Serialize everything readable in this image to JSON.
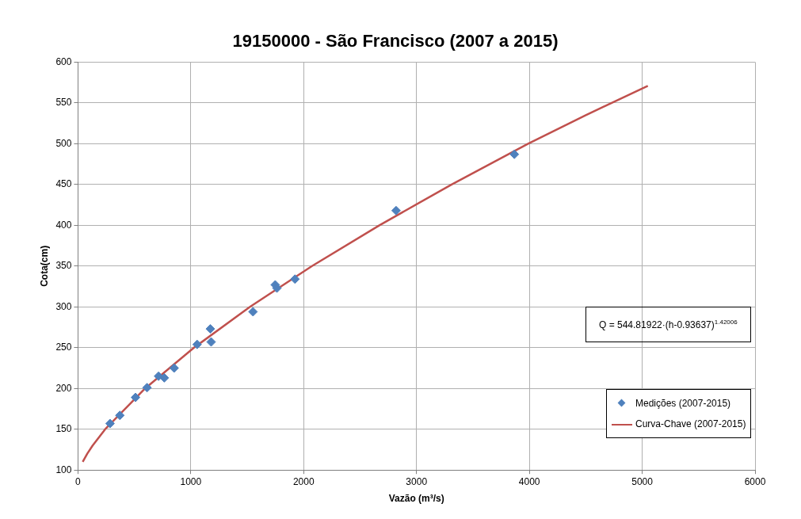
{
  "chart_data": {
    "type": "scatter",
    "title": "19150000 - São Francisco (2007 a 2015)",
    "xlabel": "Vazão (m³/s)",
    "ylabel": "Cota(cm)",
    "xlim": [
      0,
      6000
    ],
    "xticks": [
      0,
      1000,
      2000,
      3000,
      4000,
      5000,
      6000
    ],
    "ylim": [
      100,
      600
    ],
    "yticks": [
      100,
      150,
      200,
      250,
      300,
      350,
      400,
      450,
      500,
      550,
      600
    ],
    "grid": true,
    "legend": "bottom right",
    "annotations": [
      "Q = 544.81922·(h-0.93637)$^{1.42006}$"
    ],
    "series": [
      {
        "name": "Medições (2007-2015)",
        "marker": "diamond",
        "color": "#4f81bd",
        "x": [
          284,
          371,
          510,
          612,
          714,
          765,
          852,
          1056,
          1173,
          1180,
          1551,
          1748,
          1763,
          1923,
          2819,
          3867
        ],
        "values": [
          157,
          167,
          189,
          201,
          215,
          213,
          225,
          254,
          273,
          257,
          294,
          327,
          323,
          334,
          418,
          487
        ]
      },
      {
        "name": "Curva-Chave (2007-2015)",
        "type": "line",
        "marker": "none",
        "line_style": "solid",
        "color": "#c0504d",
        "x": [
          42,
          82,
          130,
          241,
          595,
          1028,
          1524,
          2074,
          2671,
          3311,
          3989,
          4500,
          5050
        ],
        "values": [
          110,
          120,
          130,
          150,
          200,
          250,
          300,
          350,
          400,
          450,
          500,
          535,
          571
        ]
      }
    ]
  }
}
